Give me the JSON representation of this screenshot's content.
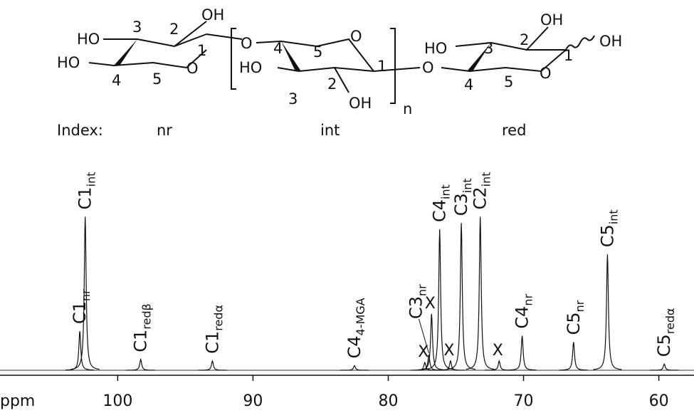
{
  "structure": {
    "labels": [
      "HO",
      "3",
      "2",
      "OH",
      "1",
      "HO",
      "4",
      "5",
      "O",
      "O",
      "4",
      "5",
      "O",
      "HO",
      "1",
      "3",
      "2",
      "OH",
      "n",
      "O",
      "HO",
      "3",
      "2",
      "OH",
      "OH",
      "1",
      "4",
      "5",
      "O"
    ],
    "index": [
      "Index:",
      "nr",
      "int",
      "red"
    ]
  },
  "chart_data": {
    "type": "spectrum",
    "x_label": "ppm",
    "xlim": [
      108.7,
      57.4
    ],
    "xticks": [
      100,
      90,
      80,
      70,
      60
    ],
    "ylim": [
      0,
      100
    ],
    "peaks": [
      {
        "ppm": 102.8,
        "height": 25,
        "label": "C1",
        "sub": "nr"
      },
      {
        "ppm": 102.4,
        "height": 98,
        "label": "C1",
        "sub": "int"
      },
      {
        "ppm": 98.3,
        "height": 7,
        "label": "C1",
        "sub": "redβ"
      },
      {
        "ppm": 93.0,
        "height": 6,
        "label": "C1",
        "sub": "redα"
      },
      {
        "ppm": 82.5,
        "height": 3,
        "label": "C4",
        "sub": "4-MGA"
      },
      {
        "ppm": 77.3,
        "height": 5,
        "label": "X"
      },
      {
        "ppm": 77.0,
        "height": 10,
        "label": "C3",
        "sub": "nr"
      },
      {
        "ppm": 76.8,
        "height": 36,
        "label": "X"
      },
      {
        "ppm": 76.2,
        "height": 90,
        "label": "C4",
        "sub": "int"
      },
      {
        "ppm": 75.4,
        "height": 6,
        "label": "X"
      },
      {
        "ppm": 74.6,
        "height": 94,
        "label": "C3",
        "sub": "int"
      },
      {
        "ppm": 73.2,
        "height": 98,
        "label": "C2",
        "sub": "int"
      },
      {
        "ppm": 71.8,
        "height": 6,
        "label": "X"
      },
      {
        "ppm": 70.1,
        "height": 22,
        "label": "C4",
        "sub": "nr"
      },
      {
        "ppm": 66.3,
        "height": 18,
        "label": "C5",
        "sub": "nr"
      },
      {
        "ppm": 63.8,
        "height": 74,
        "label": "C5",
        "sub": "int"
      },
      {
        "ppm": 59.6,
        "height": 4,
        "label": "C5",
        "sub": "redα"
      }
    ]
  }
}
